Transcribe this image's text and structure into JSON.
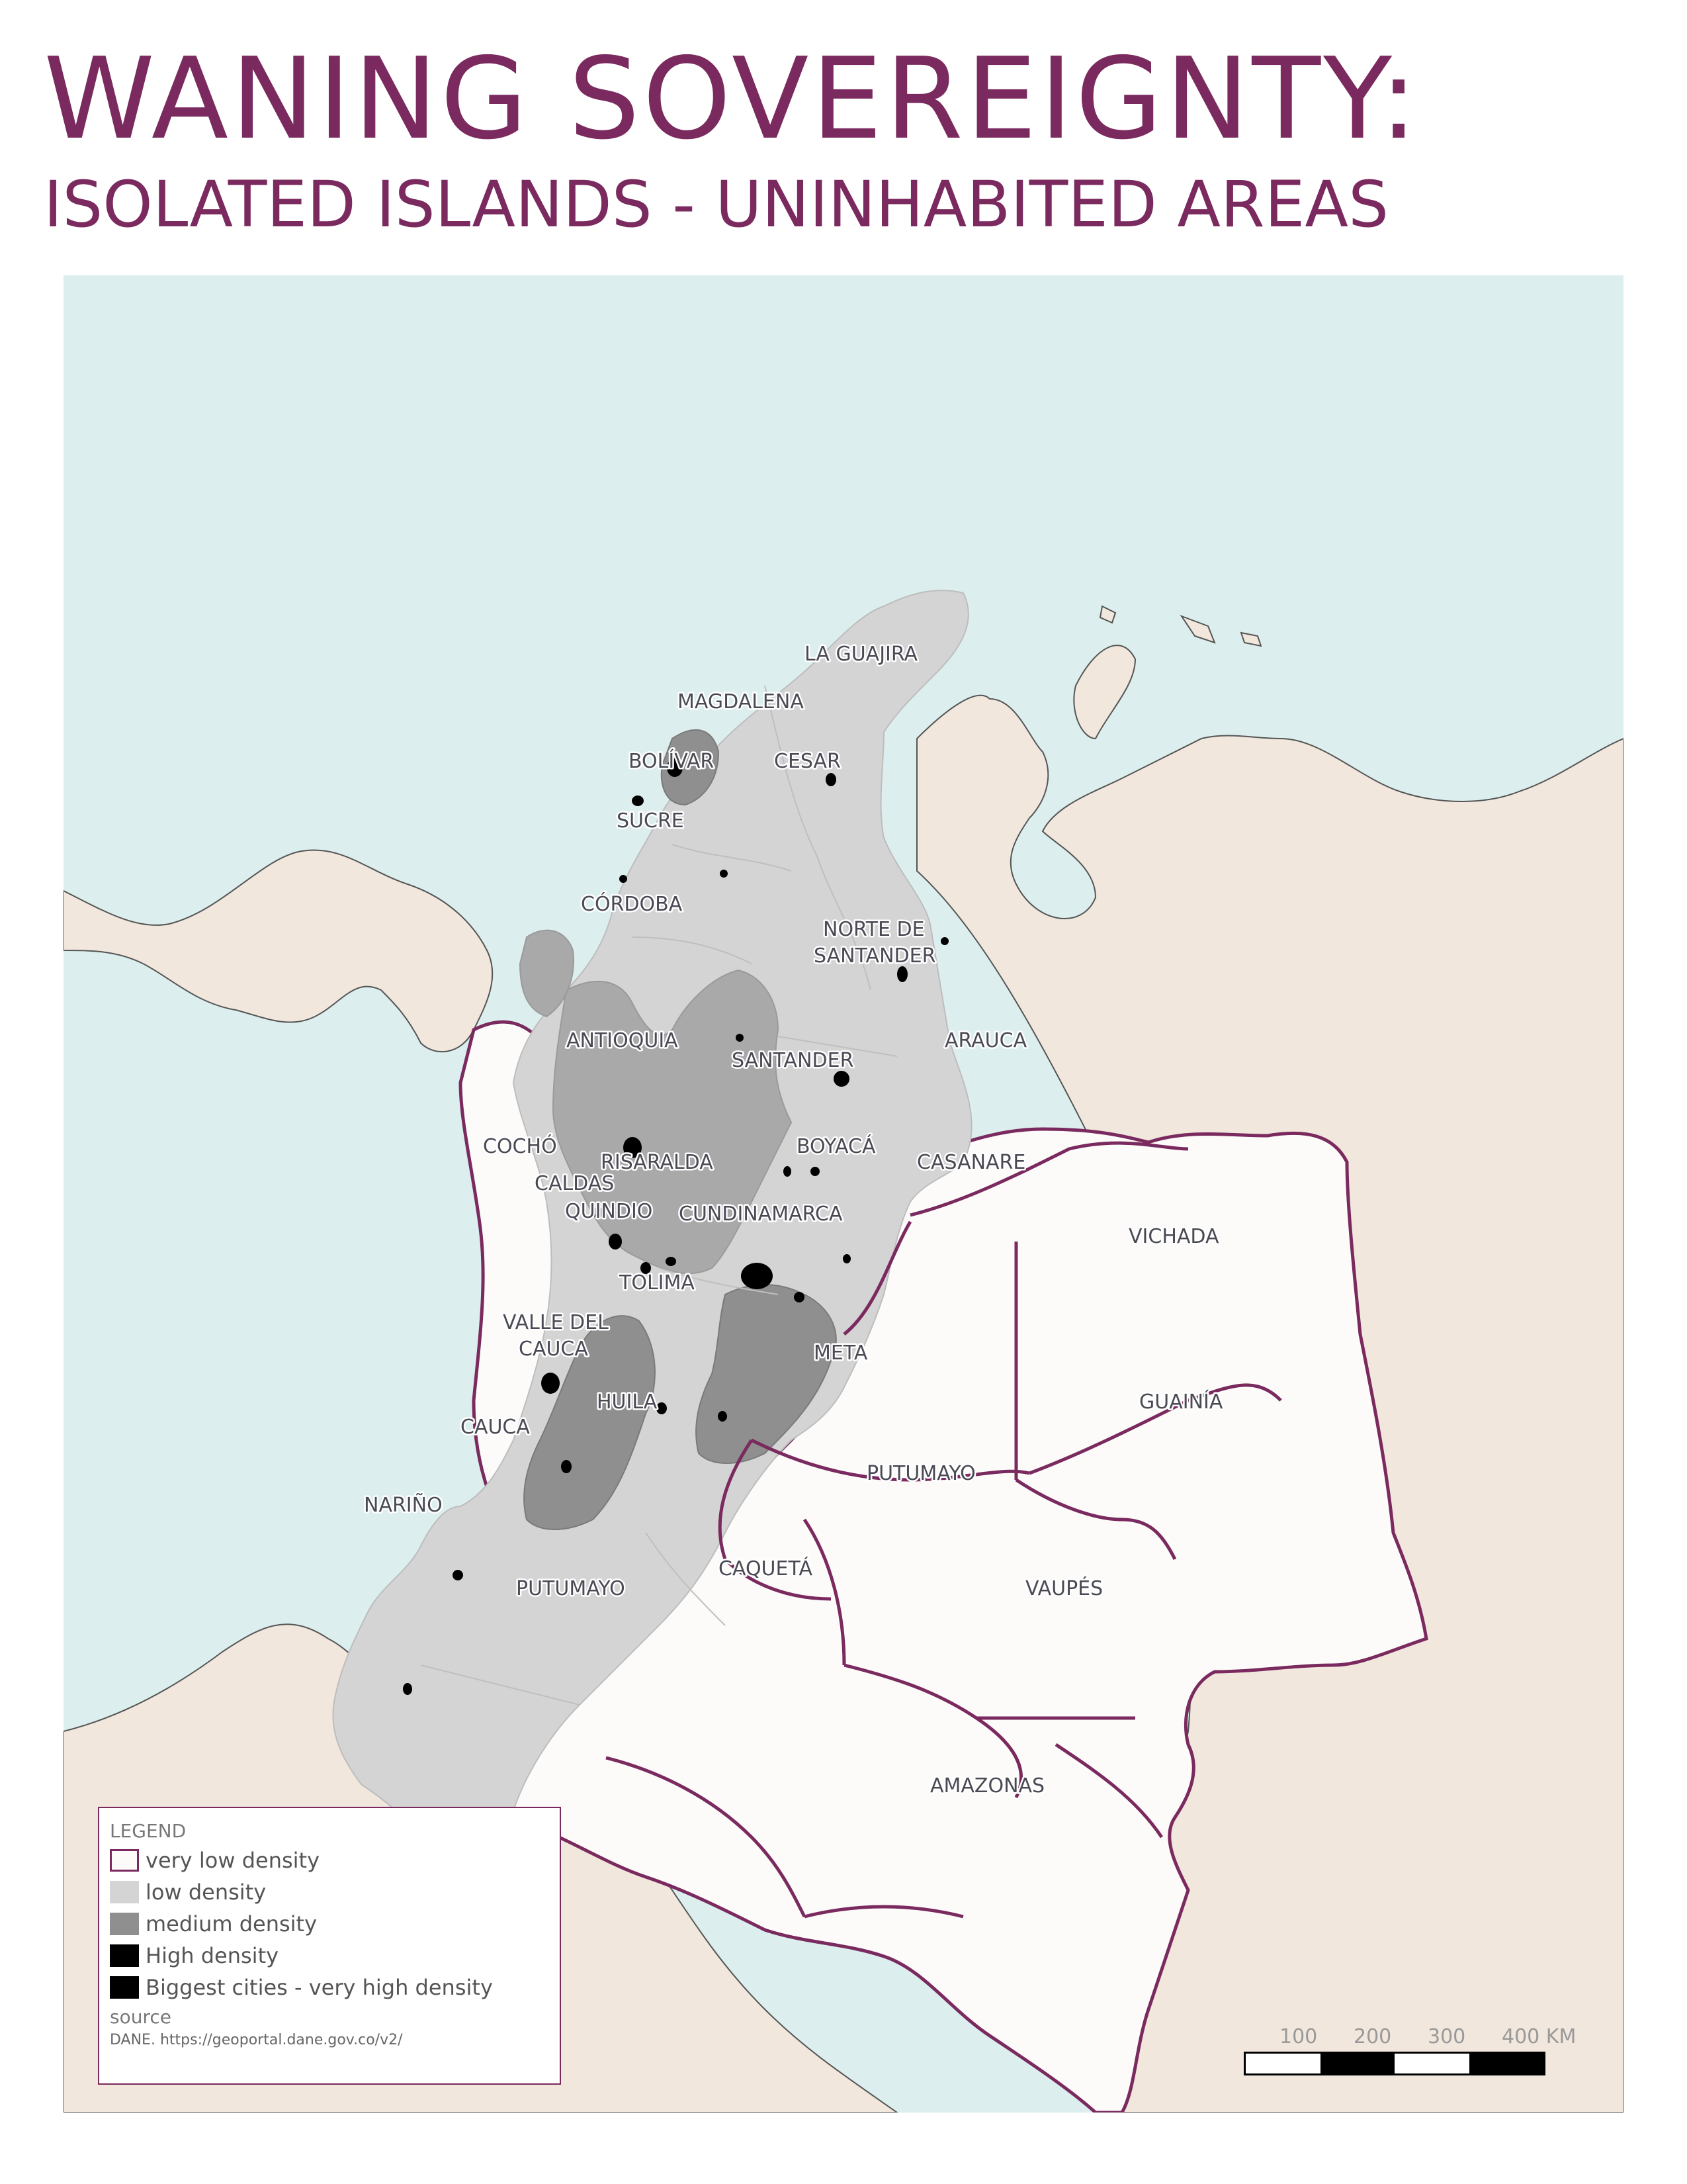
{
  "title": "WANING SOVEREIGNTY:",
  "subtitle": "ISOLATED ISLANDS - UNINHABITED AREAS",
  "colors": {
    "ocean": "#dcefee",
    "land": "#f1e7dd",
    "very_low": "#fdfbfa",
    "low": "#d4d4d4",
    "medium": "#8f8f8f",
    "mid_dark": "#a9a9a9",
    "high": "#000000",
    "border_accent": "#7a2a5e"
  },
  "departments": {
    "la_guajira": "LA GUAJIRA",
    "magdalena": "MAGDALENA",
    "bolivar": "BOLÍVAR",
    "cesar": "CESAR",
    "sucre": "SUCRE",
    "cordoba": "CÓRDOBA",
    "norte_de_santander_1": "NORTE DE",
    "norte_de_santander_2": "SANTANDER",
    "antioquia": "ANTIOQUIA",
    "santander": "SANTANDER",
    "arauca": "ARAUCA",
    "choco": "COCHÓ",
    "risaralda": "RISARALDA",
    "boyaca": "BOYACÁ",
    "casanare": "CASANARE",
    "caldas": "CALDAS",
    "quindio": "QUINDIO",
    "cundinamarca": "CUNDINAMARCA",
    "vichada": "VICHADA",
    "tolima": "TOLIMA",
    "valle_1": "VALLE DEL",
    "valle_2": "CAUCA",
    "meta": "META",
    "huila": "HUILA",
    "guainia": "GUAINÍA",
    "cauca": "CAUCA",
    "putumayo_east": "PUTUMAYO",
    "narino": "NARIÑO",
    "caqueta": "CAQUETÁ",
    "vaupes": "VAUPÉS",
    "putumayo": "PUTUMAYO",
    "amazonas": "AMAZONAS"
  },
  "legend": {
    "title": "LEGEND",
    "items": [
      {
        "label": "very low density",
        "color": "#fdfbfa",
        "border": "#7a2a5e"
      },
      {
        "label": "low density",
        "color": "#d4d4d4",
        "border": "#d4d4d4"
      },
      {
        "label": "medium density",
        "color": "#8f8f8f",
        "border": "#8f8f8f"
      },
      {
        "label": "High density",
        "color": "#000000",
        "border": "#000000"
      },
      {
        "label": "Biggest cities - very high density",
        "color": "#000000",
        "border": "#000000"
      }
    ],
    "source_title": "source",
    "source_text": "DANE. https://geoportal.dane.gov.co/v2/"
  },
  "scale": {
    "labels": [
      "100",
      "200",
      "300",
      "400 KM"
    ]
  }
}
